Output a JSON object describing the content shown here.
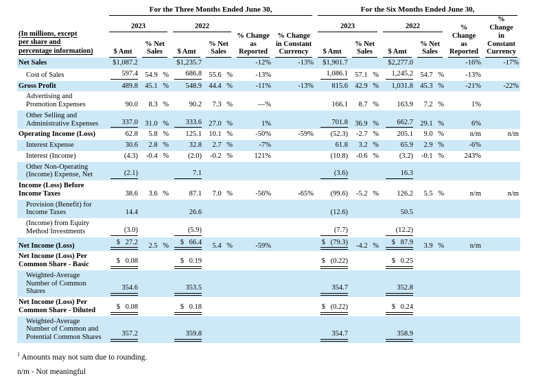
{
  "header": {
    "row_label_header": "(In millions, except\nper share and\npercentage information)",
    "group_titles": [
      "For the Three Months Ended June 30,",
      "For the Six Months Ended June 30,"
    ],
    "years": [
      "2023",
      "2022"
    ],
    "amt": "$ Amt",
    "pct_net_sales": "% Net\nSales",
    "pct_change_reported": "% Change\nas\nReported",
    "pct_change_constant_currency": "% Change\nin Constant\nCurrency"
  },
  "table": {
    "rows": [
      {
        "label": "Net Sales",
        "bold": true,
        "indent": false,
        "shaded": true,
        "underline": "none",
        "cells": [
          "$1,087.2",
          "",
          "$1,235.7",
          "",
          "-12%",
          "-13%",
          "$1,901.7",
          "",
          "$2,277.0",
          "",
          "-16%",
          "-17%"
        ]
      },
      {
        "label": "Cost of Sales",
        "bold": false,
        "indent": true,
        "shaded": false,
        "underline": "single",
        "cells": [
          "597.4",
          "54.9 %",
          "686.8",
          "55.6 %",
          "-13%",
          "",
          "1,086.1",
          "57.1 %",
          "1,245.2",
          "54.7 %",
          "-13%",
          ""
        ]
      },
      {
        "label": "Gross Profit",
        "bold": true,
        "indent": false,
        "shaded": true,
        "underline": "none",
        "cells": [
          "489.8",
          "45.1 %",
          "548.9",
          "44.4 %",
          "-11%",
          "-13%",
          "815.6",
          "42.9 %",
          "1,031.8",
          "45.3 %",
          "-21%",
          "-22%"
        ]
      },
      {
        "label": "Advertising and Promotion Expenses",
        "bold": false,
        "indent": true,
        "shaded": false,
        "underline": "none",
        "cells": [
          "90.0",
          "8.3 %",
          "90.2",
          "7.3 %",
          "—%",
          "",
          "166.1",
          "8.7 %",
          "163.9",
          "7.2 %",
          "1%",
          ""
        ]
      },
      {
        "label": "Other Selling and Administrative Expenses",
        "bold": false,
        "indent": true,
        "shaded": true,
        "underline": "single",
        "cells": [
          "337.0",
          "31.0 %",
          "333.6",
          "27.0 %",
          "1%",
          "",
          "701.8",
          "36.9 %",
          "662.7",
          "29.1 %",
          "6%",
          ""
        ]
      },
      {
        "label": "Operating Income (Loss)",
        "bold": true,
        "indent": false,
        "shaded": false,
        "underline": "none",
        "cells": [
          "62.8",
          "5.8 %",
          "125.1",
          "10.1 %",
          "-50%",
          "-59%",
          "(52.3)",
          "-2.7 %",
          "205.1",
          "9.0 %",
          "n/m",
          "n/m"
        ]
      },
      {
        "label": "Interest Expense",
        "bold": false,
        "indent": true,
        "shaded": true,
        "underline": "none",
        "cells": [
          "30.6",
          "2.8 %",
          "32.8",
          "2.7 %",
          "-7%",
          "",
          "61.8",
          "3.2 %",
          "65.9",
          "2.9 %",
          "-6%",
          ""
        ]
      },
      {
        "label": "Interest (Income)",
        "bold": false,
        "indent": true,
        "shaded": false,
        "underline": "none",
        "cells": [
          "(4.3)",
          "-0.4 %",
          "(2.0)",
          "-0.2 %",
          "121%",
          "",
          "(10.8)",
          "-0.6 %",
          "(3.2)",
          "-0.1 %",
          "243%",
          ""
        ]
      },
      {
        "label": "Other Non-Operating (Income) Expense, Net",
        "bold": false,
        "indent": true,
        "shaded": true,
        "underline": "single",
        "cells": [
          "(2.1)",
          "",
          "7.1",
          "",
          "",
          "",
          "(3.6)",
          "",
          "16.3",
          "",
          "",
          ""
        ]
      },
      {
        "label": "Income (Loss) Before Income Taxes",
        "bold": true,
        "indent": false,
        "shaded": false,
        "underline": "none",
        "cells": [
          "38.6",
          "3.6 %",
          "87.1",
          "7.0 %",
          "-56%",
          "-65%",
          "(99.6)",
          "-5.2 %",
          "126.2",
          "5.5 %",
          "n/m",
          "n/m"
        ]
      },
      {
        "label": "Provision (Benefit) for Income Taxes",
        "bold": false,
        "indent": true,
        "shaded": true,
        "underline": "none",
        "cells": [
          "14.4",
          "",
          "26.6",
          "",
          "",
          "",
          "(12.6)",
          "",
          "50.5",
          "",
          "",
          ""
        ]
      },
      {
        "label": "(Income) from Equity Method Investments",
        "bold": false,
        "indent": true,
        "shaded": false,
        "underline": "single",
        "cells": [
          "(3.0)",
          "",
          "(5.9)",
          "",
          "",
          "",
          "(7.7)",
          "",
          "(12.2)",
          "",
          "",
          ""
        ]
      },
      {
        "label": "Net Income (Loss)",
        "bold": true,
        "indent": false,
        "shaded": true,
        "underline": "double",
        "cells": [
          "$ 27.2",
          "2.5 %",
          "$ 66.4",
          "5.4 %",
          "-59%",
          "",
          "$ (79.3)",
          "-4.2 %",
          "$ 87.9",
          "3.9 %",
          "n/m",
          ""
        ]
      },
      {
        "label": "Net Income (Loss) Per Common Share - Basic",
        "bold": true,
        "indent": false,
        "shaded": false,
        "underline": "double",
        "cells": [
          "$ 0.08",
          "",
          "$ 0.19",
          "",
          "",
          "",
          "$ (0.22)",
          "",
          "$ 0.25",
          "",
          "",
          ""
        ]
      },
      {
        "label": "Weighted-Average Number of Common Shares",
        "bold": false,
        "indent": true,
        "shaded": true,
        "underline": "double",
        "cells": [
          "354.6",
          "",
          "353.5",
          "",
          "",
          "",
          "354.7",
          "",
          "352.8",
          "",
          "",
          ""
        ]
      },
      {
        "label": "Net Income (Loss) Per Common Share - Diluted",
        "bold": true,
        "indent": false,
        "shaded": false,
        "underline": "double",
        "cells": [
          "$ 0.08",
          "",
          "$ 0.18",
          "",
          "",
          "",
          "$ (0.22)",
          "",
          "$ 0.24",
          "",
          "",
          ""
        ]
      },
      {
        "label": "Weighted-Average Number of Common and Potential Common Shares",
        "bold": false,
        "indent": true,
        "shaded": true,
        "underline": "double",
        "cells": [
          "357.2",
          "",
          "359.8",
          "",
          "",
          "",
          "354.7",
          "",
          "358.9",
          "",
          "",
          ""
        ]
      }
    ]
  },
  "footnotes": {
    "rounding": {
      "marker": "1",
      "text": "Amounts may not sum due to rounding."
    },
    "nm": "n/m - Not meaningful"
  },
  "colors": {
    "stripe": "#cde9f8",
    "rule": "#000000",
    "text": "#000000"
  }
}
